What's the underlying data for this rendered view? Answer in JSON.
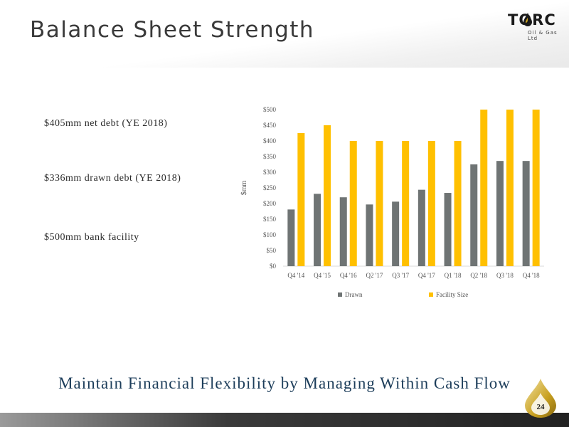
{
  "slide": {
    "title": "Balance Sheet Strength",
    "logo_name": "TORC",
    "logo_sub": "Oil & Gas Ltd",
    "page_number": "24",
    "tagline": "Maintain Financial Flexibility by Managing Within Cash Flow"
  },
  "stats": [
    "$405mm net debt (YE 2018)",
    "$336mm drawn debt (YE 2018)",
    "$500mm bank facility"
  ],
  "colors": {
    "drawn": "#6f7474",
    "facility": "#ffc000",
    "accent": "#c8a020",
    "tagline": "#1c3d5a"
  },
  "chart_data": {
    "type": "bar",
    "categories": [
      "Q4 '14",
      "Q4 '15",
      "Q4 '16",
      "Q2 '17",
      "Q3 '17",
      "Q4 '17",
      "Q1 '18",
      "Q2 '18",
      "Q3 '18",
      "Q4 '18"
    ],
    "series": [
      {
        "name": "Drawn",
        "values": [
          181,
          231,
          220,
          197,
          206,
          244,
          234,
          325,
          336,
          336
        ]
      },
      {
        "name": "Facility Size",
        "values": [
          425,
          450,
          400,
          400,
          400,
          400,
          400,
          500,
          500,
          500
        ]
      }
    ],
    "ylabel": "$mm",
    "ylim": [
      0,
      500
    ],
    "yticks": [
      "$0",
      "$50",
      "$100",
      "$150",
      "$200",
      "$250",
      "$300",
      "$350",
      "$400",
      "$450",
      "$500"
    ],
    "grid": false,
    "legend": "bottom"
  }
}
